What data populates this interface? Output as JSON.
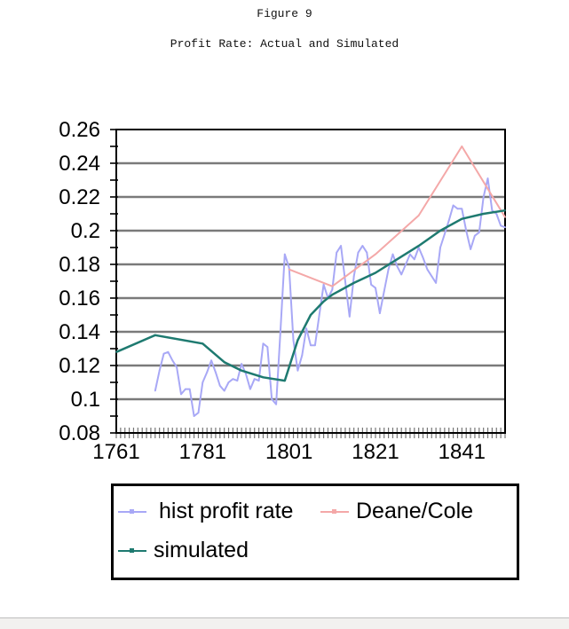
{
  "figure_label": "Figure 9",
  "chart_data": {
    "type": "line",
    "title": "Profit Rate: Actual and Simulated",
    "xlabel": "",
    "ylabel": "",
    "xlim": [
      1761,
      1851
    ],
    "ylim": [
      0.08,
      0.26
    ],
    "x_ticks": [
      "1761",
      "1781",
      "1801",
      "1821",
      "1841"
    ],
    "y_ticks": [
      "0.26",
      "0.24",
      "0.22",
      "0.2",
      "0.18",
      "0.16",
      "0.14",
      "0.12",
      "0.1",
      "0.08"
    ],
    "grid": true,
    "legend_placement": "bottom",
    "series": [
      {
        "name": "hist profit rate",
        "color": "#a8a8f6",
        "x": [
          1770,
          1771,
          1772,
          1773,
          1774,
          1775,
          1776,
          1777,
          1778,
          1779,
          1780,
          1781,
          1782,
          1783,
          1784,
          1785,
          1786,
          1787,
          1788,
          1789,
          1790,
          1791,
          1792,
          1793,
          1794,
          1795,
          1796,
          1797,
          1798,
          1799,
          1800,
          1801,
          1802,
          1803,
          1804,
          1805,
          1806,
          1807,
          1808,
          1809,
          1810,
          1811,
          1812,
          1813,
          1814,
          1815,
          1816,
          1817,
          1818,
          1819,
          1820,
          1821,
          1822,
          1823,
          1824,
          1825,
          1826,
          1827,
          1828,
          1829,
          1830,
          1831,
          1832,
          1833,
          1834,
          1835,
          1836,
          1837,
          1838,
          1839,
          1840,
          1841,
          1842,
          1843,
          1844,
          1845,
          1846,
          1847,
          1848,
          1849,
          1850,
          1851
        ],
        "y": [
          0.105,
          0.117,
          0.127,
          0.128,
          0.123,
          0.119,
          0.103,
          0.106,
          0.106,
          0.09,
          0.092,
          0.11,
          0.116,
          0.123,
          0.116,
          0.108,
          0.105,
          0.11,
          0.112,
          0.111,
          0.121,
          0.115,
          0.106,
          0.112,
          0.111,
          0.133,
          0.131,
          0.1,
          0.097,
          0.14,
          0.186,
          0.178,
          0.135,
          0.117,
          0.126,
          0.142,
          0.132,
          0.132,
          0.15,
          0.168,
          0.16,
          0.165,
          0.187,
          0.191,
          0.17,
          0.149,
          0.173,
          0.187,
          0.191,
          0.187,
          0.168,
          0.166,
          0.151,
          0.164,
          0.177,
          0.186,
          0.179,
          0.174,
          0.18,
          0.186,
          0.183,
          0.19,
          0.184,
          0.177,
          0.173,
          0.169,
          0.19,
          0.198,
          0.206,
          0.215,
          0.213,
          0.213,
          0.2,
          0.189,
          0.197,
          0.199,
          0.22,
          0.231,
          0.212,
          0.21,
          0.203,
          0.202
        ]
      },
      {
        "name": "Deane/Cole",
        "color": "#f4a8a8",
        "x": [
          1801,
          1811,
          1821,
          1831,
          1841,
          1851
        ],
        "y": [
          0.177,
          0.167,
          0.186,
          0.209,
          0.25,
          0.208
        ]
      },
      {
        "name": "simulated",
        "color": "#1e7a70",
        "x": [
          1761,
          1770,
          1781,
          1786,
          1790,
          1795,
          1800,
          1803,
          1806,
          1809,
          1811,
          1816,
          1821,
          1826,
          1831,
          1836,
          1841,
          1846,
          1851
        ],
        "y": [
          0.128,
          0.138,
          0.133,
          0.122,
          0.117,
          0.113,
          0.111,
          0.135,
          0.15,
          0.158,
          0.162,
          0.169,
          0.175,
          0.183,
          0.191,
          0.2,
          0.207,
          0.21,
          0.212
        ]
      }
    ]
  }
}
